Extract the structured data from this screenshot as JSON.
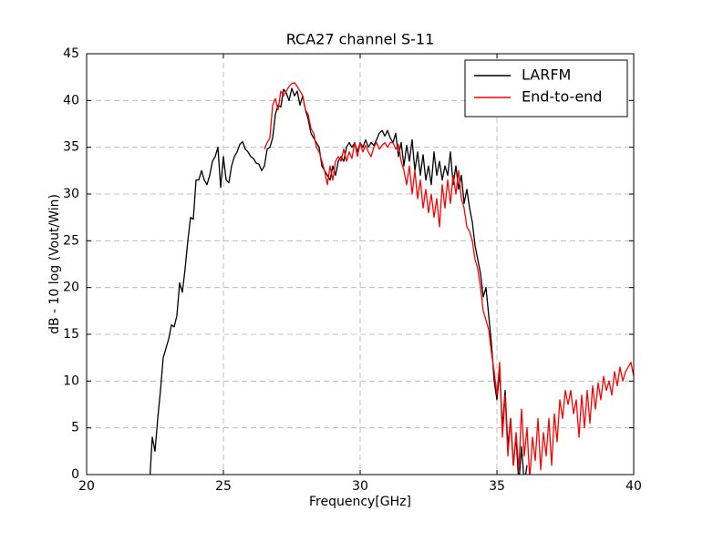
{
  "chart_data": {
    "type": "line",
    "title": "RCA27 channel S-11",
    "x_label": "Frequency[GHz]",
    "y_label": "dB - 10 log (Vout/Win)",
    "xlim": [
      20,
      40
    ],
    "ylim": [
      0,
      45
    ],
    "xticks": [
      20,
      25,
      30,
      35,
      40
    ],
    "yticks": [
      0,
      5,
      10,
      15,
      20,
      25,
      30,
      35,
      40,
      45
    ],
    "grid": true,
    "legend": "upper right",
    "series": [
      {
        "name": "LARFM",
        "color": "#000000",
        "x": [
          22.3,
          22.4,
          22.5,
          22.6,
          22.7,
          22.8,
          22.9,
          23.0,
          23.1,
          23.2,
          23.3,
          23.4,
          23.5,
          23.6,
          23.7,
          23.8,
          23.9,
          24.0,
          24.1,
          24.2,
          24.3,
          24.4,
          24.5,
          24.6,
          24.7,
          24.8,
          24.9,
          25.0,
          25.1,
          25.2,
          25.3,
          25.4,
          25.5,
          25.6,
          25.7,
          25.8,
          25.9,
          26.0,
          26.1,
          26.2,
          26.3,
          26.4,
          26.5,
          26.6,
          26.7,
          26.8,
          26.9,
          27.0,
          27.1,
          27.2,
          27.3,
          27.4,
          27.5,
          27.6,
          27.7,
          27.8,
          27.9,
          28.0,
          28.1,
          28.2,
          28.3,
          28.4,
          28.5,
          28.6,
          28.7,
          28.8,
          28.9,
          29.0,
          29.1,
          29.2,
          29.3,
          29.4,
          29.5,
          29.6,
          29.7,
          29.8,
          29.9,
          30.0,
          30.1,
          30.2,
          30.3,
          30.4,
          30.5,
          30.6,
          30.7,
          30.8,
          30.9,
          31.0,
          31.1,
          31.2,
          31.3,
          31.4,
          31.5,
          31.6,
          31.7,
          31.8,
          31.9,
          32.0,
          32.1,
          32.2,
          32.3,
          32.4,
          32.5,
          32.6,
          32.7,
          32.8,
          32.9,
          33.0,
          33.1,
          33.2,
          33.3,
          33.4,
          33.5,
          33.6,
          33.7,
          33.8,
          33.9,
          34.0,
          34.1,
          34.2,
          34.3,
          34.4,
          34.5,
          34.6,
          34.7,
          34.8,
          34.9,
          35.0,
          35.1,
          35.2,
          35.3,
          35.4,
          35.5,
          35.6,
          35.7,
          35.8,
          35.9,
          36.0,
          36.1
        ],
        "values": [
          -1,
          4,
          2.5,
          6,
          9,
          12.5,
          13.5,
          14.5,
          16,
          15.8,
          17,
          20.5,
          19.5,
          22,
          25,
          27.5,
          27.3,
          31.5,
          31.5,
          32.5,
          31.5,
          31,
          32,
          33.5,
          34,
          35,
          30.7,
          34,
          31.5,
          31.2,
          33,
          34,
          34.5,
          35.3,
          35.6,
          34.8,
          34.5,
          34,
          33.8,
          33.3,
          33.2,
          32.5,
          33,
          34.8,
          35,
          36,
          38.5,
          39.5,
          39.3,
          41.2,
          40.8,
          40,
          41.3,
          40.5,
          41,
          39.5,
          40.5,
          39,
          38,
          36.5,
          36,
          35.5,
          35,
          33,
          32.5,
          32,
          31.5,
          33,
          32,
          33.5,
          34,
          33.5,
          35,
          35.5,
          35,
          35.5,
          34.5,
          35.5,
          35,
          35.8,
          35,
          35.5,
          35.2,
          35.8,
          36.5,
          36.8,
          36.2,
          36.8,
          36,
          35.5,
          36.5,
          34,
          35.5,
          33,
          35.2,
          33.5,
          35.8,
          32.5,
          34.5,
          32,
          34.2,
          31.5,
          33,
          31,
          34.5,
          32,
          33.5,
          31.5,
          33,
          32,
          34.5,
          31,
          33,
          30.5,
          32,
          29,
          30.5,
          28.5,
          27,
          24.5,
          23,
          21.5,
          19,
          20,
          17,
          14,
          10,
          8,
          11,
          5,
          9,
          3,
          6,
          1,
          4,
          -1,
          3,
          -1,
          1
        ]
      },
      {
        "name": "End-to-end",
        "color": "#ff0000",
        "x": [
          26.5,
          26.6,
          26.7,
          26.8,
          26.9,
          27.0,
          27.1,
          27.2,
          27.3,
          27.4,
          27.5,
          27.6,
          27.7,
          27.8,
          27.9,
          28.0,
          28.1,
          28.2,
          28.3,
          28.4,
          28.5,
          28.6,
          28.7,
          28.8,
          28.9,
          29.0,
          29.1,
          29.2,
          29.3,
          29.4,
          29.5,
          29.6,
          29.7,
          29.8,
          29.9,
          30.0,
          30.1,
          30.2,
          30.3,
          30.4,
          30.5,
          30.6,
          30.7,
          30.8,
          30.9,
          31.0,
          31.1,
          31.2,
          31.3,
          31.4,
          31.5,
          31.6,
          31.7,
          31.8,
          31.9,
          32.0,
          32.1,
          32.2,
          32.3,
          32.4,
          32.5,
          32.6,
          32.7,
          32.8,
          32.9,
          33.0,
          33.1,
          33.2,
          33.3,
          33.4,
          33.5,
          33.6,
          33.7,
          33.8,
          33.9,
          34.0,
          34.1,
          34.2,
          34.3,
          34.4,
          34.5,
          34.6,
          34.7,
          34.8,
          34.9,
          35.0,
          35.1,
          35.2,
          35.3,
          35.4,
          35.5,
          35.6,
          35.7,
          35.8,
          35.9,
          36.0,
          36.1,
          36.2,
          36.3,
          36.4,
          36.5,
          36.6,
          36.7,
          36.8,
          36.9,
          37.0,
          37.1,
          37.2,
          37.3,
          37.4,
          37.5,
          37.6,
          37.7,
          37.8,
          37.9,
          38.0,
          38.1,
          38.2,
          38.3,
          38.4,
          38.5,
          38.6,
          38.7,
          38.8,
          38.9,
          39.0,
          39.1,
          39.2,
          39.3,
          39.4,
          39.5,
          39.6,
          39.7,
          39.8,
          39.9,
          40.0
        ],
        "values": [
          34.8,
          35.5,
          36,
          39.5,
          40.2,
          39,
          41,
          40.5,
          41,
          41.5,
          41.8,
          41.9,
          41.5,
          41,
          40.5,
          39,
          38.5,
          37,
          36.5,
          35,
          34.5,
          33.5,
          32.5,
          31,
          33,
          31.5,
          33.5,
          34,
          33.5,
          34.8,
          33.5,
          34.5,
          33.8,
          35.5,
          34,
          35.5,
          34.5,
          35.2,
          34.5,
          34,
          35,
          35.5,
          34.8,
          35.2,
          35.5,
          35,
          35.5,
          35.5,
          34.8,
          35.3,
          33.5,
          32.5,
          31,
          33,
          30,
          32.5,
          29.5,
          31.5,
          28.5,
          30.5,
          28,
          30,
          27.5,
          29.5,
          26.5,
          31,
          28.5,
          31.5,
          29,
          32,
          30,
          32.5,
          29.5,
          28.5,
          26.5,
          26,
          25,
          23,
          22,
          20,
          17.5,
          16.5,
          15.5,
          13,
          11,
          8.5,
          12,
          4,
          8.5,
          2,
          6,
          1,
          4.5,
          0.5,
          7,
          2,
          5,
          -0.5,
          4,
          1.5,
          6,
          0.5,
          4.5,
          2,
          6,
          1,
          6.5,
          3.5,
          8,
          6,
          9,
          7.5,
          9,
          6.5,
          8,
          4,
          8.5,
          5,
          9,
          5.5,
          9.5,
          7,
          9.8,
          8,
          10.5,
          9,
          10,
          8.5,
          11,
          9.5,
          11.5,
          10,
          11,
          11.5,
          12,
          10.5
        ]
      }
    ]
  }
}
